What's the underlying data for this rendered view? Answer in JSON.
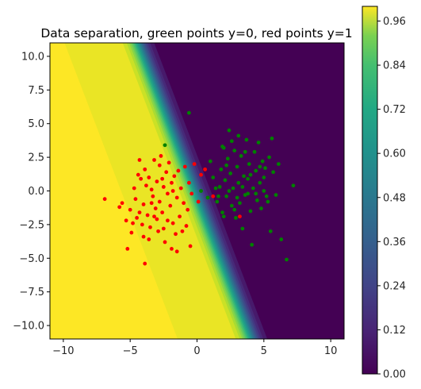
{
  "chart_data": {
    "type": "scatter",
    "title": "Data separation, green points y=0, red points y=1",
    "xlabel": "",
    "ylabel": "",
    "xlim": [
      -11,
      11
    ],
    "ylim": [
      -11,
      11
    ],
    "xticks": [
      "−10",
      "−5",
      "0",
      "5",
      "10"
    ],
    "yticks": [
      "10.0",
      "7.5",
      "5.0",
      "2.5",
      "0.0",
      "−2.5",
      "−5.0",
      "−7.5",
      "−10.0"
    ],
    "background": {
      "type": "contourf",
      "colormap": "viridis",
      "range": [
        0.0,
        1.0
      ],
      "decision_boundary": {
        "slope": -2.6,
        "intercept": -0.4,
        "width": 1.6
      },
      "yellow_side": "left"
    },
    "colorbar": {
      "ticks": [
        "0.00",
        "0.12",
        "0.24",
        "0.36",
        "0.48",
        "0.60",
        "0.72",
        "0.84",
        "0.96"
      ],
      "values": [
        0.0,
        0.12,
        0.24,
        0.36,
        0.48,
        0.6,
        0.72,
        0.84,
        0.96
      ]
    },
    "series": [
      {
        "color": "#ff0000",
        "label_value": 1,
        "points": [
          [
            -6.9,
            -0.6
          ],
          [
            -5.8,
            -1.2
          ],
          [
            -5.6,
            -0.9
          ],
          [
            -5.3,
            -2.2
          ],
          [
            -5.2,
            -4.3
          ],
          [
            -5.0,
            -1.4
          ],
          [
            -4.9,
            -3.1
          ],
          [
            -4.7,
            0.2
          ],
          [
            -4.6,
            -0.6
          ],
          [
            -4.5,
            -2.0
          ],
          [
            -4.4,
            1.2
          ],
          [
            -4.3,
            -1.6
          ],
          [
            -4.2,
            0.9
          ],
          [
            -4.1,
            -2.5
          ],
          [
            -4.0,
            -1.0
          ],
          [
            -3.9,
            1.6
          ],
          [
            -3.9,
            -5.4
          ],
          [
            -3.8,
            0.4
          ],
          [
            -3.7,
            -1.8
          ],
          [
            -3.6,
            -3.6
          ],
          [
            -3.6,
            1.0
          ],
          [
            -3.5,
            -2.7
          ],
          [
            -3.4,
            0.1
          ],
          [
            -3.3,
            -0.4
          ],
          [
            -3.2,
            2.3
          ],
          [
            -3.1,
            -1.3
          ],
          [
            -3.0,
            0.7
          ],
          [
            -3.0,
            -2.1
          ],
          [
            -2.9,
            -3.0
          ],
          [
            -2.8,
            1.9
          ],
          [
            -2.8,
            -0.8
          ],
          [
            -2.7,
            2.6
          ],
          [
            -2.6,
            -1.6
          ],
          [
            -2.5,
            0.3
          ],
          [
            -2.5,
            -2.8
          ],
          [
            -2.4,
            -3.8
          ],
          [
            -2.3,
            1.4
          ],
          [
            -2.2,
            -0.2
          ],
          [
            -2.2,
            -2.2
          ],
          [
            -2.1,
            2.1
          ],
          [
            -2.0,
            -1.1
          ],
          [
            -1.9,
            -4.3
          ],
          [
            -1.9,
            0.6
          ],
          [
            -1.8,
            -2.4
          ],
          [
            -1.7,
            1.1
          ],
          [
            -1.6,
            -3.2
          ],
          [
            -1.5,
            -0.5
          ],
          [
            -1.5,
            -4.5
          ],
          [
            -1.4,
            1.5
          ],
          [
            -1.3,
            -1.9
          ],
          [
            -1.2,
            0.2
          ],
          [
            -1.1,
            -3.0
          ],
          [
            -1.0,
            -0.9
          ],
          [
            -0.9,
            1.8
          ],
          [
            -0.8,
            -2.6
          ],
          [
            -0.7,
            -1.4
          ],
          [
            -0.6,
            0.6
          ],
          [
            -0.5,
            -4.1
          ],
          [
            -0.4,
            -0.2
          ],
          [
            -0.2,
            2.0
          ],
          [
            0.1,
            -0.8
          ],
          [
            0.3,
            1.2
          ],
          [
            0.6,
            1.6
          ],
          [
            1.2,
            -0.4
          ],
          [
            3.2,
            -1.9
          ],
          [
            -4.8,
            -2.4
          ],
          [
            -4.0,
            -3.4
          ],
          [
            -3.2,
            -1.9
          ],
          [
            -2.6,
            0.9
          ],
          [
            -1.8,
            0.0
          ],
          [
            -3.4,
            -0.9
          ],
          [
            -4.3,
            2.3
          ]
        ]
      },
      {
        "color": "#008000",
        "label_value": 0,
        "points": [
          [
            -2.4,
            3.4
          ],
          [
            -0.6,
            5.8
          ],
          [
            1.0,
            2.2
          ],
          [
            1.2,
            1.0
          ],
          [
            1.5,
            -0.8
          ],
          [
            1.7,
            0.3
          ],
          [
            1.8,
            1.6
          ],
          [
            1.9,
            -1.6
          ],
          [
            2.0,
            3.2
          ],
          [
            2.1,
            0.8
          ],
          [
            2.2,
            -0.4
          ],
          [
            2.3,
            2.4
          ],
          [
            2.4,
            4.5
          ],
          [
            2.5,
            1.3
          ],
          [
            2.6,
            -1.1
          ],
          [
            2.7,
            0.2
          ],
          [
            2.8,
            3.0
          ],
          [
            2.9,
            -2.0
          ],
          [
            3.0,
            1.8
          ],
          [
            3.1,
            0.6
          ],
          [
            3.2,
            -0.9
          ],
          [
            3.3,
            2.6
          ],
          [
            3.4,
            -2.8
          ],
          [
            3.5,
            1.1
          ],
          [
            3.6,
            -0.3
          ],
          [
            3.7,
            3.8
          ],
          [
            3.8,
            0.9
          ],
          [
            3.9,
            2.0
          ],
          [
            4.0,
            -1.5
          ],
          [
            4.1,
            -4.0
          ],
          [
            4.2,
            0.2
          ],
          [
            4.3,
            2.9
          ],
          [
            4.4,
            1.5
          ],
          [
            4.5,
            -0.7
          ],
          [
            4.6,
            3.6
          ],
          [
            4.7,
            0.6
          ],
          [
            4.8,
            -1.3
          ],
          [
            4.9,
            2.2
          ],
          [
            5.0,
            0.0
          ],
          [
            5.1,
            1.7
          ],
          [
            5.2,
            -0.4
          ],
          [
            5.4,
            2.5
          ],
          [
            5.5,
            -3.0
          ],
          [
            5.6,
            3.9
          ],
          [
            5.7,
            1.4
          ],
          [
            5.9,
            -0.3
          ],
          [
            6.1,
            2.0
          ],
          [
            6.3,
            -3.6
          ],
          [
            6.7,
            -5.1
          ],
          [
            7.2,
            0.4
          ],
          [
            1.4,
            0.2
          ],
          [
            2.2,
            1.9
          ],
          [
            3.0,
            -0.5
          ],
          [
            2.6,
            3.7
          ],
          [
            3.8,
            -0.2
          ],
          [
            4.4,
            -0.2
          ],
          [
            1.6,
            -0.4
          ],
          [
            2.4,
            0.0
          ],
          [
            3.4,
            0.3
          ],
          [
            2.8,
            -1.4
          ],
          [
            4.0,
            1.2
          ],
          [
            5.0,
            1.0
          ],
          [
            1.9,
            3.3
          ],
          [
            3.1,
            4.1
          ],
          [
            4.7,
            1.8
          ],
          [
            5.3,
            -0.8
          ],
          [
            2.0,
            -1.9
          ],
          [
            3.6,
            2.9
          ],
          [
            0.3,
            0.0
          ],
          [
            0.8,
            -0.5
          ]
        ]
      }
    ],
    "grid": false,
    "legend": "none"
  }
}
